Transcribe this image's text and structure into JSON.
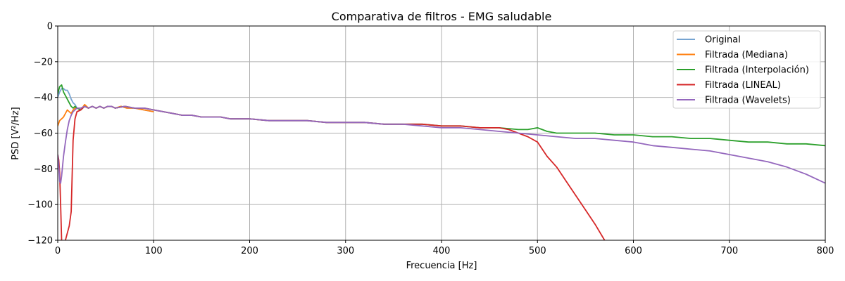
{
  "chart_data": {
    "type": "line",
    "title": "Comparativa de filtros - EMG saludable",
    "xlabel": "Frecuencia [Hz]",
    "ylabel": "PSD [V²/Hz]",
    "xlim": [
      0,
      800
    ],
    "ylim": [
      -120,
      0
    ],
    "xticks": [
      0,
      100,
      200,
      300,
      400,
      500,
      600,
      700,
      800
    ],
    "yticks": [
      0,
      -20,
      -40,
      -60,
      -80,
      -100,
      -120
    ],
    "xtick_labels": [
      "0",
      "100",
      "200",
      "300",
      "400",
      "500",
      "600",
      "700",
      "800"
    ],
    "ytick_labels": [
      "0",
      "−20",
      "−40",
      "−60",
      "−80",
      "−100",
      "−120"
    ],
    "grid": true,
    "legend_position": "top-right",
    "series": [
      {
        "name": "Original",
        "color": "#76a4d1",
        "x": [
          0,
          2,
          4,
          6,
          8,
          10,
          12,
          14,
          16,
          18,
          20,
          24,
          28,
          32,
          36,
          40,
          44,
          48,
          52,
          56,
          60,
          66,
          72,
          80,
          90,
          100
        ],
        "y": [
          -40,
          -37,
          -35,
          -35,
          -36,
          -36,
          -38,
          -41,
          -43,
          -44,
          -46,
          -46,
          -45,
          -46,
          -45,
          -46,
          -45,
          -46,
          -45,
          -45,
          -46,
          -45,
          -46,
          -46,
          -47,
          -48
        ]
      },
      {
        "name": "Filtrada (Mediana)",
        "color": "#ff7f0e",
        "x": [
          0,
          2,
          4,
          6,
          8,
          10,
          12,
          14,
          16,
          18,
          20,
          24,
          28,
          32,
          36,
          40,
          44,
          48,
          52,
          56,
          60,
          66,
          72,
          80,
          90,
          100
        ],
        "y": [
          -56,
          -53,
          -52,
          -51,
          -49,
          -47,
          -48,
          -49,
          -47,
          -46,
          -46,
          -47,
          -44,
          -46,
          -45,
          -46,
          -45,
          -46,
          -45,
          -45,
          -46,
          -45,
          -46,
          -46,
          -47,
          -48
        ]
      },
      {
        "name": "Filtrada (Interpolación)",
        "color": "#2ca02c",
        "x": [
          0,
          2,
          4,
          6,
          8,
          10,
          12,
          14,
          16,
          18,
          20,
          24,
          28,
          32,
          36,
          40,
          44,
          48,
          52,
          56,
          60,
          70,
          80,
          90,
          100,
          110,
          120,
          130,
          140,
          150,
          160,
          170,
          180,
          190,
          200,
          220,
          240,
          260,
          280,
          300,
          320,
          340,
          360,
          380,
          400,
          420,
          440,
          460,
          480,
          490,
          500,
          510,
          520,
          540,
          560,
          580,
          600,
          620,
          640,
          660,
          680,
          700,
          720,
          740,
          760,
          780,
          800
        ],
        "y": [
          -38,
          -34,
          -33,
          -37,
          -39,
          -41,
          -43,
          -45,
          -46,
          -45,
          -46,
          -47,
          -45,
          -46,
          -45,
          -46,
          -45,
          -46,
          -45,
          -45,
          -46,
          -45,
          -46,
          -46,
          -47,
          -48,
          -49,
          -50,
          -50,
          -51,
          -51,
          -51,
          -52,
          -52,
          -52,
          -53,
          -53,
          -53,
          -54,
          -54,
          -54,
          -55,
          -55,
          -55,
          -56,
          -56,
          -57,
          -57,
          -58,
          -58,
          -57,
          -59,
          -60,
          -60,
          -60,
          -61,
          -61,
          -62,
          -62,
          -63,
          -63,
          -64,
          -65,
          -65,
          -66,
          -66,
          -67
        ]
      },
      {
        "name": "Filtrada (LINEAL)",
        "color": "#d62728",
        "x": [
          0,
          1,
          2,
          3,
          4,
          6,
          8,
          10,
          12,
          14,
          16,
          18,
          20,
          24,
          28,
          32,
          36,
          40,
          44,
          48,
          52,
          56,
          60,
          70,
          80,
          90,
          100,
          110,
          120,
          130,
          140,
          150,
          160,
          170,
          180,
          190,
          200,
          220,
          240,
          260,
          280,
          300,
          320,
          340,
          360,
          380,
          400,
          420,
          440,
          460,
          470,
          480,
          490,
          500,
          505,
          510,
          520,
          530,
          540,
          550,
          560,
          570
        ],
        "y": [
          -72,
          -75,
          -82,
          -100,
          -120,
          -121,
          -120,
          -116,
          -112,
          -104,
          -64,
          -52,
          -48,
          -47,
          -45,
          -46,
          -45,
          -46,
          -45,
          -46,
          -45,
          -45,
          -46,
          -45,
          -46,
          -46,
          -47,
          -48,
          -49,
          -50,
          -50,
          -51,
          -51,
          -51,
          -52,
          -52,
          -52,
          -53,
          -53,
          -53,
          -54,
          -54,
          -54,
          -55,
          -55,
          -55,
          -56,
          -56,
          -57,
          -57,
          -58,
          -60,
          -62,
          -65,
          -69,
          -73,
          -79,
          -87,
          -95,
          -103,
          -111,
          -120
        ]
      },
      {
        "name": "Filtrada (Wavelets)",
        "color": "#9467bd",
        "x": [
          0,
          1,
          2,
          3,
          4,
          6,
          8,
          10,
          12,
          14,
          16,
          18,
          20,
          24,
          28,
          32,
          36,
          40,
          44,
          48,
          52,
          56,
          60,
          70,
          80,
          90,
          100,
          110,
          120,
          130,
          140,
          150,
          160,
          170,
          180,
          190,
          200,
          220,
          240,
          260,
          280,
          300,
          320,
          340,
          360,
          380,
          400,
          420,
          440,
          460,
          480,
          500,
          520,
          540,
          560,
          580,
          600,
          620,
          640,
          660,
          680,
          700,
          720,
          740,
          760,
          780,
          800
        ],
        "y": [
          -72,
          -78,
          -87,
          -88,
          -84,
          -73,
          -65,
          -58,
          -53,
          -50,
          -48,
          -47,
          -46,
          -46,
          -45,
          -46,
          -45,
          -46,
          -45,
          -46,
          -45,
          -45,
          -46,
          -45,
          -46,
          -46,
          -47,
          -48,
          -49,
          -50,
          -50,
          -51,
          -51,
          -51,
          -52,
          -52,
          -52,
          -53,
          -53,
          -53,
          -54,
          -54,
          -54,
          -55,
          -55,
          -56,
          -57,
          -57,
          -58,
          -59,
          -60,
          -61,
          -62,
          -63,
          -63,
          -64,
          -65,
          -67,
          -68,
          -69,
          -70,
          -72,
          -74,
          -76,
          -79,
          -83,
          -88
        ]
      }
    ]
  }
}
